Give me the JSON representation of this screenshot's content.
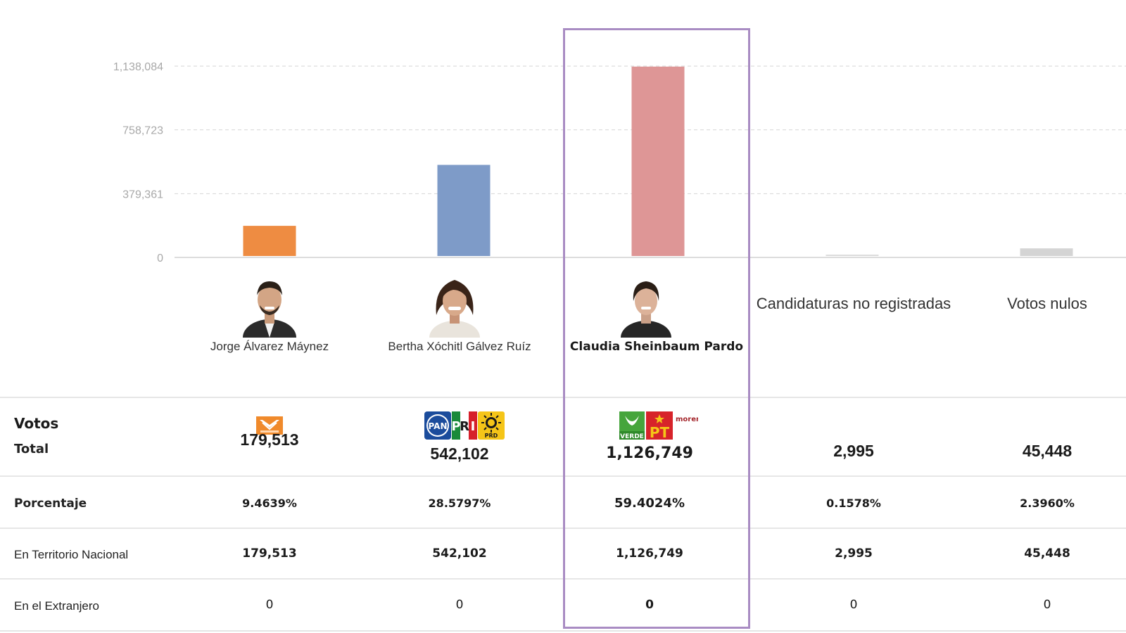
{
  "chart_data": {
    "type": "bar",
    "categories": [
      "Jorge Álvarez Máynez",
      "Bertha Xóchitl Gálvez Ruíz",
      "Claudia Sheinbaum Pardo",
      "Candidaturas no registradas",
      "Votos nulos"
    ],
    "values": [
      179513,
      542102,
      1126749,
      2995,
      45448
    ],
    "colors": [
      "#ee8c42",
      "#7e9bc8",
      "#de9696",
      "#dcdcdc",
      "#d4d4d4"
    ],
    "y_ticks": [
      "0",
      "379,361",
      "758,723",
      "1,138,084"
    ],
    "y_tick_values": [
      0,
      379361,
      758723,
      1138084
    ],
    "ylim": [
      0,
      1138084
    ],
    "grid": true,
    "highlighted_category": "Claudia Sheinbaum Pardo"
  },
  "candidates": [
    {
      "name": "Jorge Álvarez Máynez",
      "party_logos": [
        "movimiento-ciudadano-logo"
      ],
      "photo": "candidate-photo"
    },
    {
      "name": "Bertha Xóchitl Gálvez Ruíz",
      "party_logos": [
        "pan-logo",
        "pri-logo",
        "prd-logo"
      ],
      "photo": "candidate-photo"
    },
    {
      "name": "Claudia Sheinbaum Pardo",
      "party_logos": [
        "pvem-logo",
        "pt-logo",
        "morena-logo"
      ],
      "photo": "candidate-photo"
    }
  ],
  "other_columns": [
    "Candidaturas no registradas",
    "Votos nulos"
  ],
  "logos": {
    "pan": "PAN",
    "pri_letters": [
      "P",
      "R",
      "I"
    ],
    "prd": "PRD",
    "verde": "VERDE",
    "pt": "PT",
    "morena": "morena"
  },
  "table": {
    "row_votos_label": "Votos",
    "row_total_label": "Total",
    "row_pct_label": "Porcentaje",
    "row_nat_label": "En Territorio Nacional",
    "row_ext_label": "En el Extranjero",
    "totals": [
      "179,513",
      "542,102",
      "1,126,749",
      "2,995",
      "45,448"
    ],
    "percentages": [
      "9.4639%",
      "28.5797%",
      "59.4024%",
      "0.1578%",
      "2.3960%"
    ],
    "nacional": [
      "179,513",
      "542,102",
      "1,126,749",
      "2,995",
      "45,448"
    ],
    "extranjero": [
      "0",
      "0",
      "0",
      "0",
      "0"
    ]
  }
}
